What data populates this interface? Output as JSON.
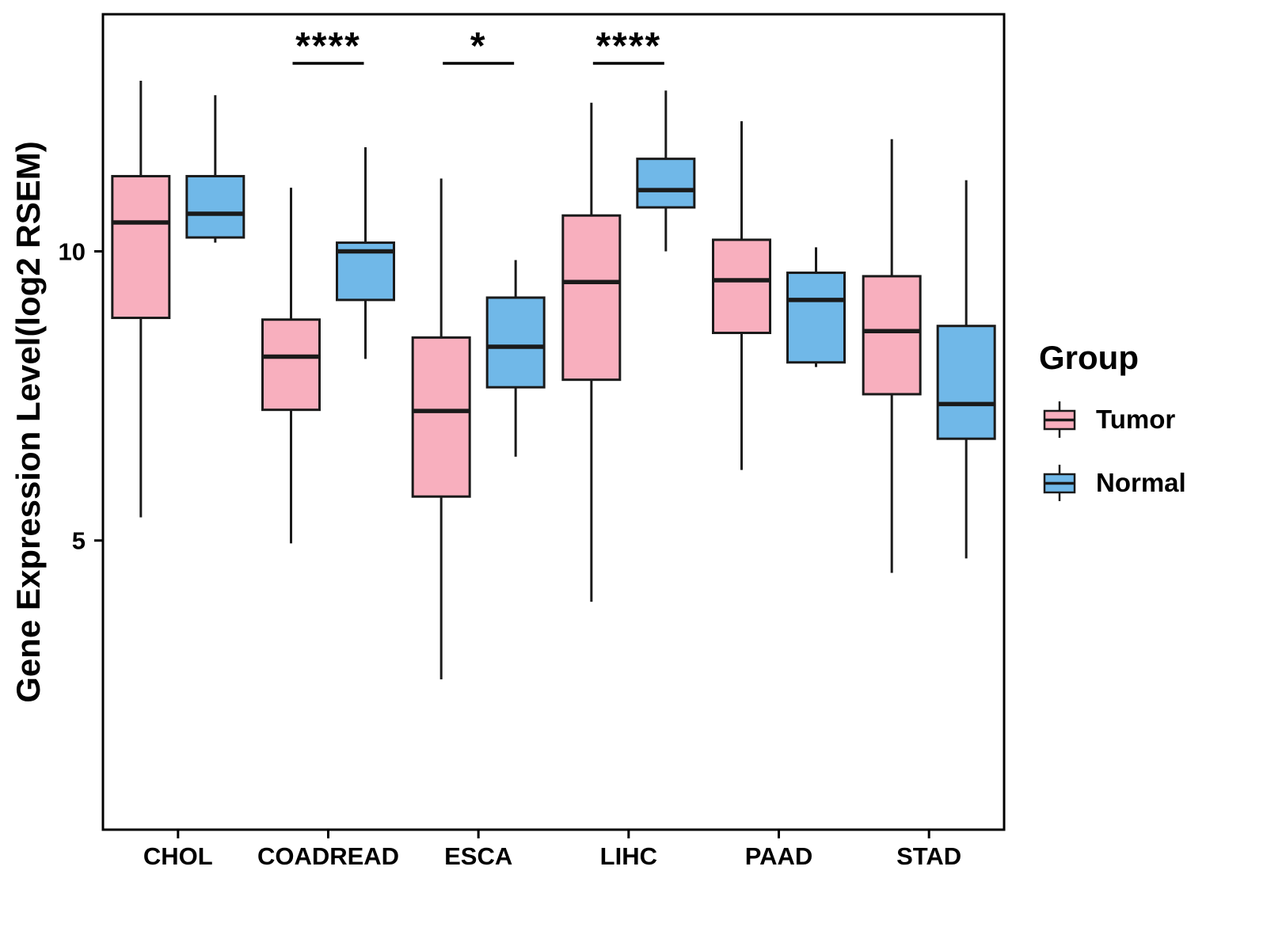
{
  "chart_data": {
    "type": "grouped_boxplot",
    "title": "",
    "ylabel": "Gene Expression Level(log2 RSEM)",
    "xlabel": "",
    "legend_title": "Group",
    "legend_position": "right",
    "grid": false,
    "categories": [
      "CHOL",
      "COADREAD",
      "ESCA",
      "LIHC",
      "PAAD",
      "STAD"
    ],
    "yticks": [
      5,
      10
    ],
    "ylim": [
      0,
      14.1
    ],
    "series": [
      {
        "name": "Tumor",
        "color": "#F8AFBE",
        "boxes": [
          {
            "low": 5.4,
            "q1": 8.85,
            "median": 10.5,
            "q3": 11.3,
            "high": 12.95
          },
          {
            "low": 4.95,
            "q1": 7.26,
            "median": 8.18,
            "q3": 8.82,
            "high": 11.1
          },
          {
            "low": 2.6,
            "q1": 5.76,
            "median": 7.24,
            "q3": 8.51,
            "high": 11.26
          },
          {
            "low": 3.94,
            "q1": 7.78,
            "median": 9.47,
            "q3": 10.62,
            "high": 12.57
          },
          {
            "low": 6.22,
            "q1": 8.59,
            "median": 9.5,
            "q3": 10.2,
            "high": 12.25
          },
          {
            "low": 4.44,
            "q1": 7.53,
            "median": 8.62,
            "q3": 9.57,
            "high": 11.94
          }
        ]
      },
      {
        "name": "Normal",
        "color": "#70B8E8",
        "boxes": [
          {
            "low": 10.15,
            "q1": 10.24,
            "median": 10.65,
            "q3": 11.3,
            "high": 12.7
          },
          {
            "low": 8.14,
            "q1": 9.16,
            "median": 10.0,
            "q3": 10.15,
            "high": 11.8
          },
          {
            "low": 6.45,
            "q1": 7.65,
            "median": 8.35,
            "q3": 9.2,
            "high": 9.85
          },
          {
            "low": 10.0,
            "q1": 10.76,
            "median": 11.06,
            "q3": 11.6,
            "high": 12.78
          },
          {
            "low": 8.0,
            "q1": 8.08,
            "median": 9.16,
            "q3": 9.63,
            "high": 10.07
          },
          {
            "low": 4.69,
            "q1": 6.76,
            "median": 7.36,
            "q3": 8.71,
            "high": 11.23
          }
        ]
      }
    ],
    "annotations": [
      {
        "category": "COADREAD",
        "label": "****"
      },
      {
        "category": "ESCA",
        "label": "*"
      },
      {
        "category": "LIHC",
        "label": "****"
      }
    ],
    "stroke_color": "#1a1a1a"
  }
}
